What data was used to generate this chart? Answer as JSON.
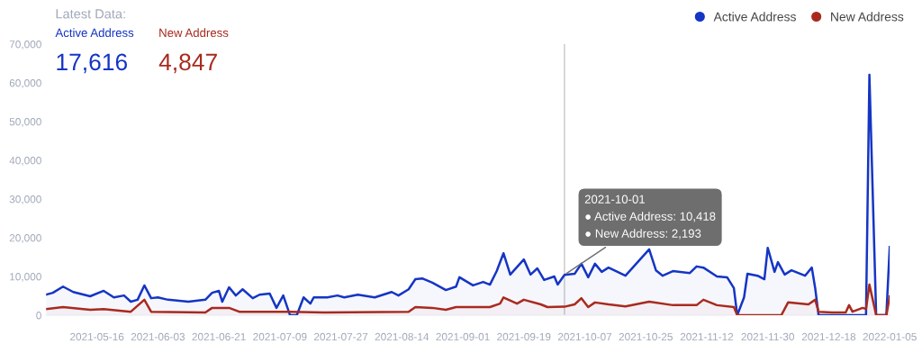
{
  "chart_data": {
    "type": "area",
    "title": "Latest Data:",
    "annotations": [
      "Active Address",
      "17,616",
      "New Address",
      "4,847",
      {
        "text": "2021-10-01\n● Active Address: 10,418\n● New Address: 2,193",
        "x": "2021-10-01",
        "y": 10418
      }
    ],
    "series": [
      {
        "name": "Active Address",
        "color": "#1535c4",
        "x": [
          "2021-05-01",
          "2021-05-03",
          "2021-05-06",
          "2021-05-09",
          "2021-05-14",
          "2021-05-18",
          "2021-05-21",
          "2021-05-24",
          "2021-05-26",
          "2021-05-28",
          "2021-05-30",
          "2021-06-01",
          "2021-06-03",
          "2021-06-06",
          "2021-06-12",
          "2021-06-17",
          "2021-06-19",
          "2021-06-21",
          "2021-06-22",
          "2021-06-24",
          "2021-06-26",
          "2021-06-28",
          "2021-07-01",
          "2021-07-03",
          "2021-07-06",
          "2021-07-08",
          "2021-07-10",
          "2021-07-12",
          "2021-07-14",
          "2021-07-16",
          "2021-07-18",
          "2021-07-19",
          "2021-07-23",
          "2021-07-26",
          "2021-07-28",
          "2021-08-01",
          "2021-08-06",
          "2021-08-11",
          "2021-08-13",
          "2021-08-16",
          "2021-08-18",
          "2021-08-20",
          "2021-08-23",
          "2021-08-27",
          "2021-08-30",
          "2021-08-31",
          "2021-09-04",
          "2021-09-07",
          "2021-09-09",
          "2021-09-11",
          "2021-09-13",
          "2021-09-15",
          "2021-09-19",
          "2021-09-21",
          "2021-09-23",
          "2021-09-25",
          "2021-09-28",
          "2021-09-29",
          "2021-10-01",
          "2021-10-04",
          "2021-10-06",
          "2021-10-08",
          "2021-10-10",
          "2021-10-12",
          "2021-10-14",
          "2021-10-19",
          "2021-10-26",
          "2021-10-28",
          "2021-10-30",
          "2021-11-02",
          "2021-11-07",
          "2021-11-09",
          "2021-11-11",
          "2021-11-15",
          "2021-11-18",
          "2021-11-20",
          "2021-11-21",
          "2021-11-23",
          "2021-11-24",
          "2021-11-27",
          "2021-11-29",
          "2021-11-30",
          "2021-12-02",
          "2021-12-03",
          "2021-12-05",
          "2021-12-07",
          "2021-12-09",
          "2021-12-11",
          "2021-12-13",
          "2021-12-14",
          "2021-12-15",
          "2021-12-29",
          "2021-12-30",
          "2022-01-01",
          "2022-01-04",
          "2022-01-05"
        ],
        "values": [
          5300,
          5800,
          7400,
          6000,
          4900,
          6300,
          4600,
          5100,
          3500,
          4000,
          7700,
          4400,
          4600,
          4000,
          3500,
          4000,
          5800,
          6300,
          3500,
          7200,
          5100,
          6700,
          4400,
          5300,
          5600,
          1900,
          5100,
          0,
          0,
          4600,
          3000,
          4600,
          4600,
          5100,
          4600,
          5300,
          4600,
          6000,
          5100,
          6700,
          9300,
          9500,
          8400,
          6500,
          7400,
          9800,
          7700,
          8600,
          7900,
          11400,
          16000,
          10500,
          14400,
          10500,
          12100,
          9100,
          10000,
          7900,
          10418,
          10700,
          13300,
          9800,
          13300,
          11200,
          12300,
          10200,
          17000,
          11600,
          10200,
          11400,
          10900,
          12600,
          12300,
          10000,
          9800,
          7000,
          0,
          4600,
          10700,
          10200,
          9300,
          17400,
          11200,
          13700,
          10500,
          11600,
          10900,
          10200,
          12300,
          7000,
          0,
          0,
          62100,
          0,
          0,
          17616
        ]
      },
      {
        "name": "New Address",
        "color": "#a82a1e",
        "x": [
          "2021-05-01",
          "2021-05-06",
          "2021-05-14",
          "2021-05-18",
          "2021-05-26",
          "2021-05-30",
          "2021-06-01",
          "2021-06-17",
          "2021-06-19",
          "2021-06-24",
          "2021-06-27",
          "2021-07-12",
          "2021-07-22",
          "2021-08-16",
          "2021-08-18",
          "2021-08-23",
          "2021-08-27",
          "2021-08-30",
          "2021-09-09",
          "2021-09-12",
          "2021-09-13",
          "2021-09-17",
          "2021-09-19",
          "2021-09-24",
          "2021-09-26",
          "2021-10-01",
          "2021-10-04",
          "2021-10-06",
          "2021-10-08",
          "2021-10-10",
          "2021-10-14",
          "2021-10-19",
          "2021-10-26",
          "2021-11-02",
          "2021-11-09",
          "2021-11-11",
          "2021-11-15",
          "2021-11-20",
          "2021-11-21",
          "2021-12-04",
          "2021-12-06",
          "2021-12-12",
          "2021-12-14",
          "2021-12-15",
          "2021-12-19",
          "2021-12-23",
          "2021-12-24",
          "2021-12-25",
          "2021-12-28",
          "2021-12-29",
          "2021-12-30",
          "2022-01-01",
          "2022-01-04",
          "2022-01-05"
        ],
        "values": [
          1600,
          2100,
          1400,
          1600,
          900,
          4000,
          900,
          700,
          1900,
          1900,
          900,
          900,
          700,
          900,
          2100,
          1900,
          1400,
          2100,
          2100,
          3000,
          4600,
          3000,
          4000,
          2800,
          2100,
          2193,
          2800,
          4400,
          2100,
          3300,
          2800,
          2300,
          3500,
          2600,
          2600,
          4000,
          2600,
          2100,
          0,
          0,
          3300,
          2800,
          4000,
          900,
          700,
          700,
          2600,
          900,
          1900,
          1600,
          7900,
          0,
          0,
          4847
        ]
      }
    ],
    "xlim": [
      "2021-05-01",
      "2022-01-05"
    ],
    "xticks": [
      {
        "value": "2021-05-16",
        "label": "2021-05-16"
      },
      {
        "value": "2021-06-03",
        "label": "2021-06-03"
      },
      {
        "value": "2021-06-21",
        "label": "2021-06-21"
      },
      {
        "value": "2021-07-09",
        "label": "2021-07-09"
      },
      {
        "value": "2021-07-27",
        "label": "2021-07-27"
      },
      {
        "value": "2021-08-14",
        "label": "2021-08-14"
      },
      {
        "value": "2021-09-01",
        "label": "2021-09-01"
      },
      {
        "value": "2021-09-19",
        "label": "2021-09-19"
      },
      {
        "value": "2021-10-07",
        "label": "2021-10-07"
      },
      {
        "value": "2021-10-25",
        "label": "2021-10-25"
      },
      {
        "value": "2021-11-12",
        "label": "2021-11-12"
      },
      {
        "value": "2021-11-30",
        "label": "2021-11-30"
      },
      {
        "value": "2021-12-18",
        "label": "2021-12-18"
      },
      {
        "value": "2022-01-05",
        "label": "2022-01-05"
      }
    ],
    "ylim": [
      0,
      70000
    ],
    "yticks": [
      0,
      {
        "value": 10000,
        "label": "10,000"
      },
      {
        "value": 20000,
        "label": "20,000"
      },
      {
        "value": 30000,
        "label": "30,000"
      },
      {
        "value": 40000,
        "label": "40,000"
      },
      {
        "value": 50000,
        "label": "50,000"
      },
      {
        "value": 60000,
        "label": "60,000"
      },
      {
        "value": 70000,
        "label": "70,000"
      }
    ],
    "ref_lines": [
      {
        "axis": "x",
        "value": "2021-10-01",
        "color": "#c8c8c8"
      }
    ],
    "grid": false,
    "legend": "top right",
    "marker": "none",
    "line_style": "solid"
  }
}
